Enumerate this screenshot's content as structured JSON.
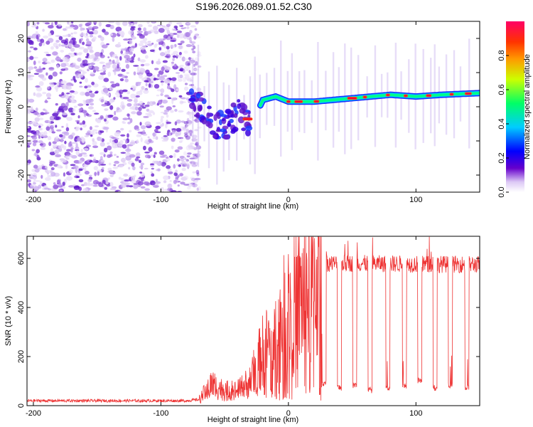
{
  "title": "S196.2026.089.01.52.C30",
  "chart_data": [
    {
      "type": "heatmap",
      "title": "S196.2026.089.01.52.C30",
      "xlabel": "Height of straight line (km)",
      "ylabel": "Frequency (Hz)",
      "xlim": [
        -205,
        150
      ],
      "ylim": [
        -25,
        25
      ],
      "xticks": [
        -200,
        -100,
        0,
        100
      ],
      "yticks": [
        -20,
        -10,
        0,
        10,
        20
      ],
      "colorbar": {
        "label": "Normalized spectral amplitude",
        "range": [
          0,
          1
        ],
        "ticks": [
          "0.0",
          "0.2",
          "0.4",
          "0.6",
          "0.8"
        ],
        "colors": [
          "#ffffff",
          "#6600cc",
          "#0000ff",
          "#00ccff",
          "#00ff66",
          "#ffff00",
          "#ff3300",
          "#ff0066"
        ]
      },
      "noise_region_x": [
        -205,
        -78
      ],
      "signal_track": {
        "x": [
          -80,
          -70,
          -60,
          -50,
          -40,
          -30,
          -25,
          -20,
          -10,
          0,
          20,
          50,
          80,
          100,
          120,
          150
        ],
        "y": [
          4,
          0,
          -5,
          -6,
          -2,
          -4,
          -2,
          2,
          3,
          1.5,
          1.5,
          2.5,
          3.5,
          3,
          3.5,
          4
        ]
      }
    },
    {
      "type": "line",
      "xlabel": "Height of straight line (km)",
      "ylabel": "SNR (10 * v/v)",
      "xlim": [
        -205,
        150
      ],
      "ylim": [
        0,
        690
      ],
      "xticks": [
        -200,
        -100,
        0,
        100
      ],
      "yticks": [
        0,
        200,
        400,
        600
      ],
      "series": [
        {
          "name": "SNR",
          "color": "#ee3333",
          "envelope_x": [
            -205,
            -80,
            -70,
            -60,
            -50,
            -40,
            -30,
            -20,
            -10,
            0,
            10,
            20,
            30,
            150
          ],
          "envelope_y": [
            20,
            20,
            25,
            90,
            60,
            60,
            100,
            220,
            280,
            400,
            440,
            500,
            580,
            575
          ]
        }
      ],
      "dropouts": [
        {
          "x": 28,
          "y": 80
        },
        {
          "x": 40,
          "y": 60
        },
        {
          "x": 52,
          "y": 70
        },
        {
          "x": 64,
          "y": 50
        },
        {
          "x": 78,
          "y": 60
        },
        {
          "x": 91,
          "y": 70
        },
        {
          "x": 103,
          "y": 90
        },
        {
          "x": 115,
          "y": 60
        },
        {
          "x": 127,
          "y": 70
        },
        {
          "x": 140,
          "y": 60
        }
      ]
    }
  ]
}
